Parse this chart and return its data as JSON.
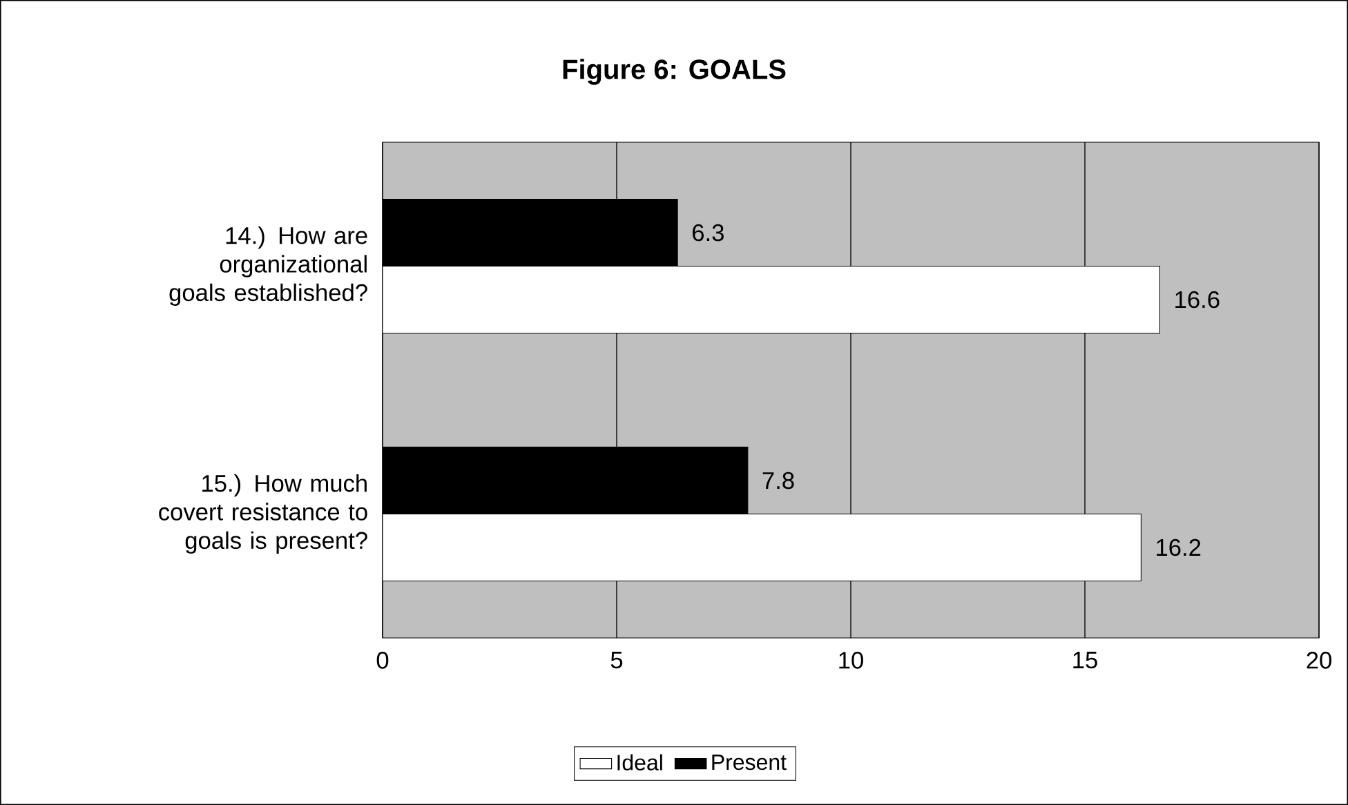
{
  "chart_data": {
    "type": "bar",
    "orientation": "horizontal",
    "title": "Figure 6: GOALS",
    "categories": [
      "14.) How are organizational goals established?",
      "15.) How much covert resistance to goals is present?"
    ],
    "series": [
      {
        "name": "Ideal",
        "color": "#ffffff",
        "values": [
          16.6,
          16.2
        ]
      },
      {
        "name": "Present",
        "color": "#000000",
        "values": [
          6.3,
          7.8
        ]
      }
    ],
    "xlim": [
      0,
      20
    ],
    "xticks": [
      0,
      5,
      10,
      15,
      20
    ],
    "grid": "x",
    "legend": "bottom",
    "data_labels": true
  }
}
